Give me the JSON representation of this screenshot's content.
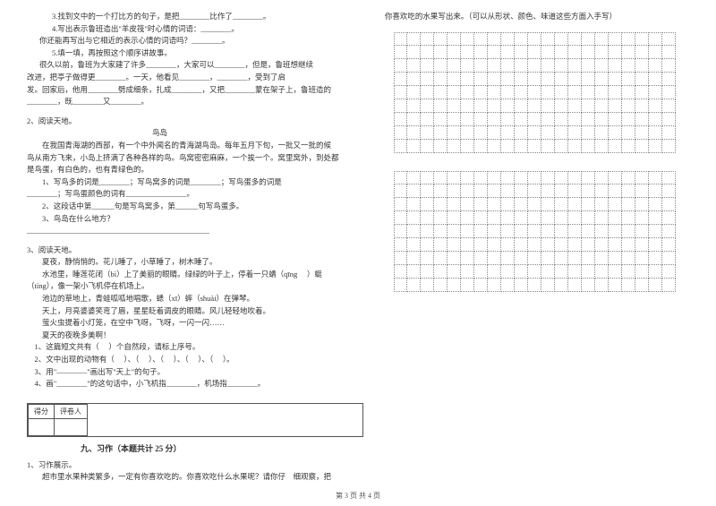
{
  "leftCol": {
    "q3": "3.找到文中的一个打比方的句子，是把________比作了________。",
    "q4": "4.写出表示鲁班造出\"羊皮筏\"时心情的词语：________。",
    "q4b": "你还能再写出与它相近的表示心情的词语吗？________。",
    "q5": "5.填一填，再按照这个顺序讲故事。",
    "q5b": "很久以前，鲁班为大家建了许多________，大家可以________，但是，鲁班想继续",
    "q5c": "改进，把亭子做得更________。一天，他看见________，________，受到了启",
    "q5d": "发。回家后，他用________劈成细条，扎成________，又把________蒙在架子上，鲁班造的",
    "q5e": "________，既________又________。",
    "reading2": {
      "title": "2、阅读天地。",
      "subtitle": "鸟岛",
      "p1": "        在我国青海湖的西部，有一个中外闻名的青海湖鸟岛。每年五月下旬，一批又一批的候",
      "p2": "鸟从南方飞来，小岛上挤满了各种各样的鸟。鸟窝密密麻麻，一个挨一个。窝里窝外，到处都",
      "p3": "是鸟蛋，有白色的，也有青绿色的。",
      "q1": "        1、写鸟多的词是________；写鸟窝多的词是________；写鸟蛋多的词是",
      "q1b": "________；写鸟蛋颜色的词有________________。",
      "q2": "        2、这段话中第______句是写鸟窝多，第______句写鸟蛋多。",
      "q3": "        3、鸟岛在什么地方？",
      "q3b": "________________________________________________"
    },
    "reading3": {
      "title": "3、阅读天地。",
      "p1": "        夏夜，静悄悄的。花儿睡了，小草睡了，树木睡了。",
      "p2": "        水池里，睡莲花闭（bì）上了美丽的眼睛。绿绿的叶子上，停着一只蜻（qīng     ）蜓",
      "p3": "（tíng），像一架小飞机停在机场上。",
      "p4": "        池边的草地上，青蛙呱呱地唱歌，蟋（xī）蟀（shuài）在弹琴。",
      "p5": "        天上，月亮婆婆笑弯了眉，星星眨着调皮的眼睛。风儿轻轻地吹着。",
      "p6": "        萤火虫提着小灯笼，在空中飞呀，飞呀，一闪一闪……",
      "p7": "        夏天的夜晚多美啊！",
      "q1": "    1、这篇短文共有（     ）个自然段，请标上序号。",
      "q2": "    2、文中出现的动物有（     ）、（     ）、（     ）、（     ）、（     ）。",
      "q3": "    3、用\"————\"画出写\"天上\"的句子。",
      "q4": "    4、画\"________\"的这句话中，小飞机指________，机场指________。"
    },
    "scoreHeader": {
      "c1": "得分",
      "c2": "评卷人"
    },
    "sectionTitle": "九、习作（本题共计 25 分）",
    "composition": {
      "title": "1、习作展示。",
      "p1": "        超市里水果种类繁多，一定有你喜欢吃的。你喜欢吃什么水果呢？请你仔    细观察，把"
    }
  },
  "rightCol": {
    "topLine": "你喜欢吃的水果写出来。（可以从形状、颜色、味道这些方面入手写）",
    "grid": {
      "cols": 21,
      "rows1": 9,
      "rows2": 9
    }
  },
  "footer": "第 3 页  共 4 页"
}
